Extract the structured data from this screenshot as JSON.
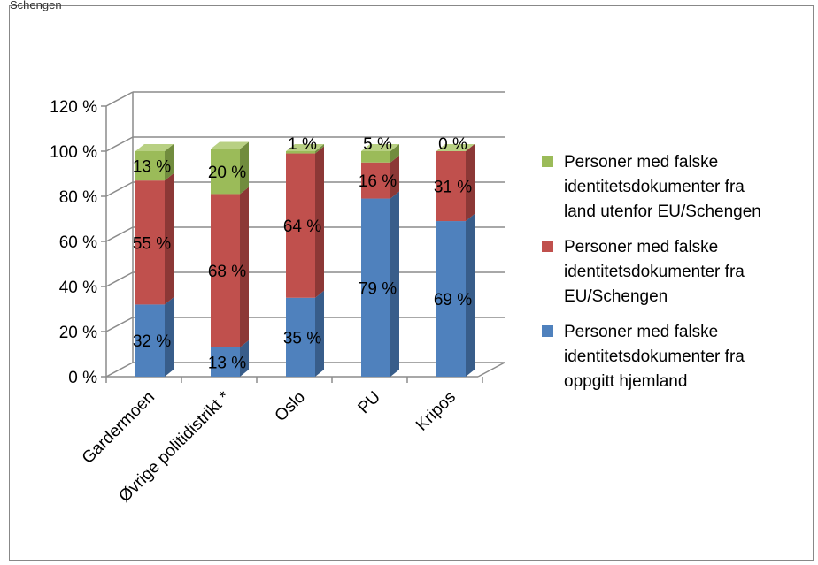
{
  "caption": "Schengen",
  "chart_data": {
    "type": "bar",
    "stacked": true,
    "style": "3d",
    "categories": [
      "Gardermoen",
      "Øvrige politidistrikt *",
      "Oslo",
      "PU",
      "Kripos"
    ],
    "series": [
      {
        "name": "Personer med falske\nidentitetsdokumenter fra\noppgitt hjemland",
        "values": [
          32,
          13,
          35,
          79,
          69
        ],
        "labels": [
          "32 %",
          "13 %",
          "35 %",
          "79 %",
          "69 %"
        ]
      },
      {
        "name": "Personer med falske\nidentitetsdokumenter fra\nEU/Schengen",
        "values": [
          55,
          68,
          64,
          16,
          31
        ],
        "labels": [
          "55 %",
          "68 %",
          "64 %",
          "16 %",
          "31 %"
        ]
      },
      {
        "name": "Personer med falske\nidentitetsdokumenter fra\nland utenfor EU/Schengen",
        "values": [
          13,
          20,
          1,
          5,
          0
        ],
        "labels": [
          "13 %",
          "20 %",
          "1 %",
          "5 %",
          "0 %"
        ]
      }
    ],
    "colors": {
      "blue": "#4f81bd",
      "blue_side": "#385d8a",
      "blue_top": "#7ea3d4",
      "red": "#c0504d",
      "red_side": "#8c3836",
      "red_top": "#d47d7a",
      "green": "#9bbb59",
      "green_side": "#718c3e",
      "green_top": "#b8d083",
      "grid": "#8c8c8c"
    },
    "yticks": [
      "0 %",
      "20 %",
      "40 %",
      "60 %",
      "80 %",
      "100 %",
      "120 %"
    ],
    "ylim": [
      0,
      120
    ],
    "grid": true,
    "legend_position": "right",
    "title": "",
    "xlabel": "",
    "ylabel": ""
  }
}
